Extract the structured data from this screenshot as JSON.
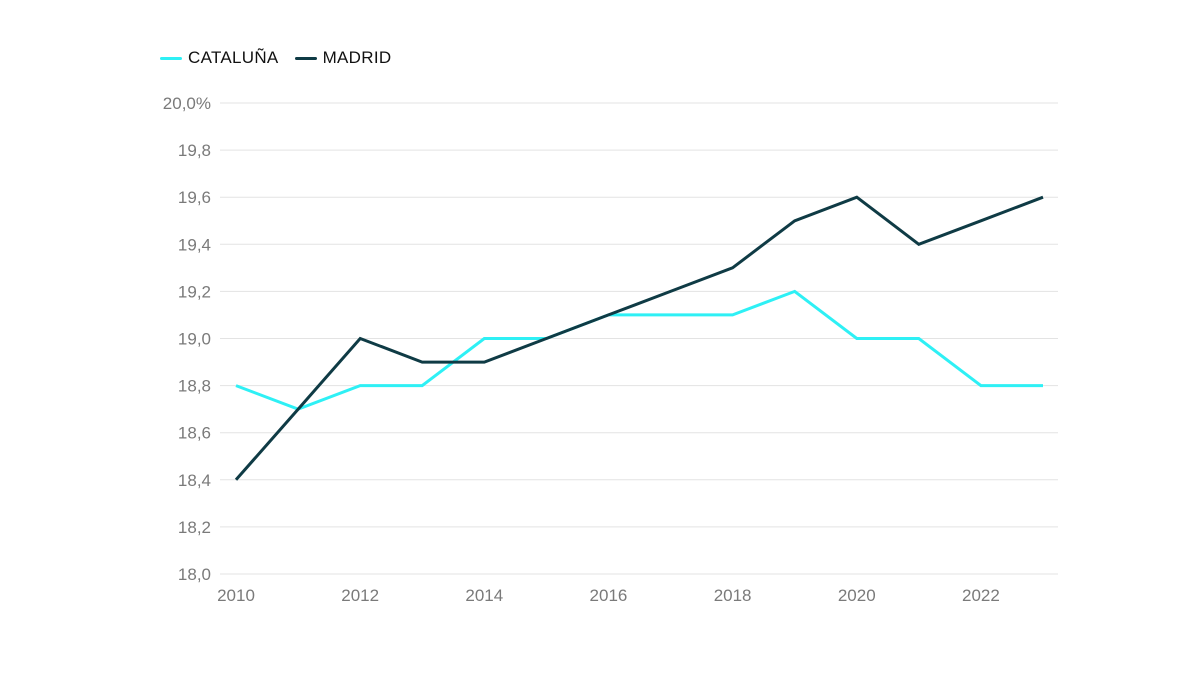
{
  "chart_data": {
    "type": "line",
    "title": "",
    "xlabel": "",
    "ylabel": "",
    "x": [
      2010,
      2011,
      2012,
      2013,
      2014,
      2015,
      2016,
      2017,
      2018,
      2019,
      2020,
      2021,
      2022,
      2023
    ],
    "series": [
      {
        "name": "CATALUÑA",
        "color": "#2ef0f5",
        "values": [
          18.8,
          18.7,
          18.8,
          18.8,
          19.0,
          19.0,
          19.1,
          19.1,
          19.1,
          19.2,
          19.0,
          19.0,
          18.8,
          18.8
        ]
      },
      {
        "name": "MADRID",
        "color": "#0f3b45",
        "values": [
          18.4,
          18.7,
          19.0,
          18.9,
          18.9,
          19.0,
          19.1,
          19.2,
          19.3,
          19.5,
          19.6,
          19.4,
          19.5,
          19.6
        ]
      }
    ],
    "ylim": [
      18.0,
      20.0
    ],
    "xlim": [
      2010,
      2023
    ],
    "x_tick_values": [
      2010,
      2012,
      2014,
      2016,
      2018,
      2020,
      2022
    ],
    "x_tick_labels": [
      "2010",
      "2012",
      "2014",
      "2016",
      "2018",
      "2020",
      "2022"
    ],
    "y_tick_values": [
      18.0,
      18.2,
      18.4,
      18.6,
      18.8,
      19.0,
      19.2,
      19.4,
      19.6,
      19.8,
      20.0
    ],
    "y_tick_labels": [
      "18,0",
      "18,2",
      "18,4",
      "18,6",
      "18,8",
      "19,0",
      "19,2",
      "19,4",
      "19,6",
      "19,8",
      "20,0%"
    ],
    "grid": true,
    "legend_position": "top-left",
    "grid_color": "#e3e3e3",
    "tick_color": "#7a7a7a"
  }
}
